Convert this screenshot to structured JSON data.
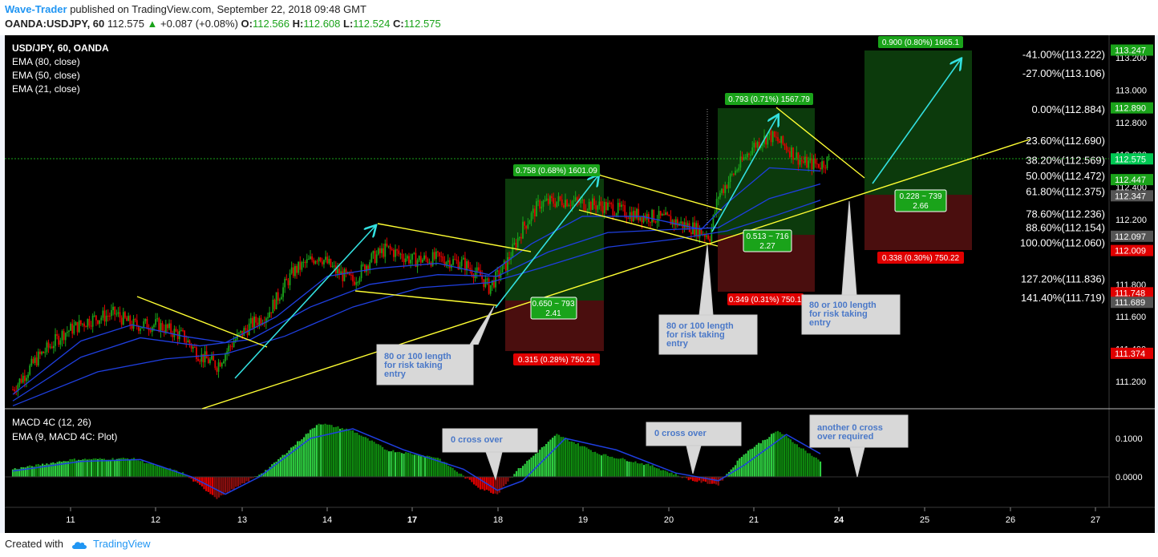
{
  "header": {
    "author": "Wave-Trader",
    "published_text": "published on TradingView.com, September 22, 2018 09:48 GMT",
    "symbol": "OANDA:USDJPY, 60",
    "last": "112.575",
    "change": "+0.087 (+0.08%)",
    "o_label": "O:",
    "o_value": "112.566",
    "h_label": "H:",
    "h_value": "112.608",
    "l_label": "L:",
    "l_value": "112.524",
    "c_label": "C:",
    "c_value": "112.575"
  },
  "legend": {
    "title": "USD/JPY, 60, OANDA",
    "items": [
      "EMA (80, close)",
      "EMA (50, close)",
      "EMA (21, close)"
    ]
  },
  "macd_legend": {
    "title": "MACD 4C (12, 26)",
    "ema": "EMA (9, MACD 4C: Plot)"
  },
  "fib_levels": [
    {
      "label": "-41.00%(113.222)",
      "price": 113.222
    },
    {
      "label": "-27.00%(113.106)",
      "price": 113.106
    },
    {
      "label": "0.00%(112.884)",
      "price": 112.884
    },
    {
      "label": "23.60%(112.690)",
      "price": 112.69
    },
    {
      "label": "38.20%(112.569)",
      "price": 112.569
    },
    {
      "label": "50.00%(112.472)",
      "price": 112.472
    },
    {
      "label": "61.80%(112.375)",
      "price": 112.375
    },
    {
      "label": "78.60%(112.236)",
      "price": 112.236
    },
    {
      "label": "88.60%(112.154)",
      "price": 112.154
    },
    {
      "label": "100.00%(112.060)",
      "price": 112.06
    },
    {
      "label": "127.20%(111.836)",
      "price": 111.836
    },
    {
      "label": "141.40%(111.719)",
      "price": 111.719
    }
  ],
  "price_tags": [
    {
      "text": "113.247",
      "price": 113.247,
      "color": "#1aa31a"
    },
    {
      "text": "112.890",
      "price": 112.89,
      "color": "#1aa31a"
    },
    {
      "text": "112.575",
      "price": 112.575,
      "color": "#00c853"
    },
    {
      "text": "112.447",
      "price": 112.447,
      "color": "#1aa31a"
    },
    {
      "text": "112.347",
      "price": 112.347,
      "color": "#555555"
    },
    {
      "text": "112.097",
      "price": 112.097,
      "color": "#555555"
    },
    {
      "text": "112.009",
      "price": 112.009,
      "color": "#e00000"
    },
    {
      "text": "111.748",
      "price": 111.748,
      "color": "#e00000"
    },
    {
      "text": "111.689",
      "price": 111.689,
      "color": "#555555"
    },
    {
      "text": "111.374",
      "price": 111.374,
      "color": "#e00000"
    }
  ],
  "position_labels": {
    "p1_target": "0.758 (0.68%) 1601.09",
    "p1_ratio": [
      "0.650 ~ 793",
      "2.41"
    ],
    "p1_stop": "0.315 (0.28%) 750.21",
    "p2_target": "0.793 (0.71%) 1567.79",
    "p2_ratio": [
      "0.513 ~ 716",
      "2.27"
    ],
    "p2_stop": "0.349 (0.31%) 750.1",
    "p3_target": "0.900 (0.80%) 1665.1",
    "p3_ratio": [
      "0.228 ~ 739",
      "2.66"
    ],
    "p3_stop": "0.338 (0.30%) 750.22"
  },
  "callouts": {
    "c1": [
      "80 or 100 length",
      "for risk taking",
      "entry"
    ],
    "c2": [
      "80 or 100 length",
      "for risk taking",
      "entry"
    ],
    "c3": [
      "80 or 100 length",
      "for risk taking",
      "entry"
    ],
    "m1": [
      "0 cross over"
    ],
    "m2": [
      "0 cross over"
    ],
    "m3": [
      "another 0 cross",
      "over required"
    ]
  },
  "x_ticks": [
    "11",
    "12",
    "13",
    "14",
    "17",
    "18",
    "19",
    "20",
    "21",
    "24",
    "25",
    "26",
    "27"
  ],
  "bold_ticks": [
    "17",
    "24"
  ],
  "footer": {
    "created": "Created with",
    "brand": "TradingView"
  },
  "colors": {
    "background": "#000000",
    "up": "#1aa31a",
    "down": "#e00000",
    "ema": "#1f3fe0",
    "trend": "#ffff33",
    "arrow": "#33e0e0",
    "profit_zone": "#0c3a0c",
    "loss_zone": "#4a0e0e"
  },
  "chart_data": {
    "type": "candlestick",
    "symbol": "USD/JPY",
    "timeframe": "60",
    "ylim": [
      111.05,
      113.33
    ],
    "y_ticks": [
      111.2,
      111.4,
      111.6,
      111.8,
      112.0,
      112.2,
      112.4,
      112.6,
      112.8,
      113.0,
      113.2
    ],
    "close_path": [
      {
        "x": 0,
        "y": 111.15
      },
      {
        "x": 3,
        "y": 111.35
      },
      {
        "x": 6,
        "y": 111.5
      },
      {
        "x": 9,
        "y": 111.58
      },
      {
        "x": 12,
        "y": 111.62
      },
      {
        "x": 14,
        "y": 111.55
      },
      {
        "x": 17,
        "y": 111.55
      },
      {
        "x": 20,
        "y": 111.48
      },
      {
        "x": 22,
        "y": 111.36
      },
      {
        "x": 24,
        "y": 111.3
      },
      {
        "x": 26,
        "y": 111.45
      },
      {
        "x": 28,
        "y": 111.55
      },
      {
        "x": 30,
        "y": 111.62
      },
      {
        "x": 33,
        "y": 111.88
      },
      {
        "x": 36,
        "y": 111.98
      },
      {
        "x": 38,
        "y": 111.88
      },
      {
        "x": 40,
        "y": 111.82
      },
      {
        "x": 42,
        "y": 111.95
      },
      {
        "x": 44,
        "y": 112.02
      },
      {
        "x": 47,
        "y": 111.95
      },
      {
        "x": 50,
        "y": 111.96
      },
      {
        "x": 53,
        "y": 111.93
      },
      {
        "x": 55,
        "y": 111.85
      },
      {
        "x": 56,
        "y": 111.78
      },
      {
        "x": 58,
        "y": 111.92
      },
      {
        "x": 60,
        "y": 112.15
      },
      {
        "x": 62,
        "y": 112.3
      },
      {
        "x": 65,
        "y": 112.32
      },
      {
        "x": 67,
        "y": 112.3
      },
      {
        "x": 70,
        "y": 112.28
      },
      {
        "x": 73,
        "y": 112.23
      },
      {
        "x": 75,
        "y": 112.22
      },
      {
        "x": 77,
        "y": 112.2
      },
      {
        "x": 80,
        "y": 112.15
      },
      {
        "x": 82,
        "y": 112.1
      },
      {
        "x": 83,
        "y": 112.35
      },
      {
        "x": 85,
        "y": 112.5
      },
      {
        "x": 87,
        "y": 112.65
      },
      {
        "x": 89,
        "y": 112.72
      },
      {
        "x": 91,
        "y": 112.65
      },
      {
        "x": 93,
        "y": 112.55
      },
      {
        "x": 95,
        "y": 112.54
      },
      {
        "x": 96,
        "y": 112.57
      }
    ],
    "ema_21": [
      {
        "x": 0,
        "y": 111.12
      },
      {
        "x": 8,
        "y": 111.45
      },
      {
        "x": 14,
        "y": 111.55
      },
      {
        "x": 20,
        "y": 111.48
      },
      {
        "x": 25,
        "y": 111.44
      },
      {
        "x": 31,
        "y": 111.6
      },
      {
        "x": 37,
        "y": 111.85
      },
      {
        "x": 43,
        "y": 111.9
      },
      {
        "x": 50,
        "y": 111.93
      },
      {
        "x": 56,
        "y": 111.86
      },
      {
        "x": 61,
        "y": 112.05
      },
      {
        "x": 67,
        "y": 112.22
      },
      {
        "x": 74,
        "y": 112.22
      },
      {
        "x": 81,
        "y": 112.14
      },
      {
        "x": 84,
        "y": 112.3
      },
      {
        "x": 89,
        "y": 112.52
      },
      {
        "x": 95,
        "y": 112.5
      }
    ],
    "ema_50": [
      {
        "x": 0,
        "y": 111.08
      },
      {
        "x": 8,
        "y": 111.35
      },
      {
        "x": 15,
        "y": 111.47
      },
      {
        "x": 22,
        "y": 111.42
      },
      {
        "x": 28,
        "y": 111.46
      },
      {
        "x": 35,
        "y": 111.66
      },
      {
        "x": 42,
        "y": 111.8
      },
      {
        "x": 50,
        "y": 111.86
      },
      {
        "x": 57,
        "y": 111.85
      },
      {
        "x": 63,
        "y": 112.0
      },
      {
        "x": 70,
        "y": 112.12
      },
      {
        "x": 78,
        "y": 112.14
      },
      {
        "x": 83,
        "y": 112.15
      },
      {
        "x": 89,
        "y": 112.33
      },
      {
        "x": 95,
        "y": 112.42
      }
    ],
    "ema_80": [
      {
        "x": 0,
        "y": 111.05
      },
      {
        "x": 10,
        "y": 111.26
      },
      {
        "x": 18,
        "y": 111.34
      },
      {
        "x": 25,
        "y": 111.37
      },
      {
        "x": 32,
        "y": 111.48
      },
      {
        "x": 40,
        "y": 111.66
      },
      {
        "x": 48,
        "y": 111.78
      },
      {
        "x": 56,
        "y": 111.81
      },
      {
        "x": 62,
        "y": 111.9
      },
      {
        "x": 70,
        "y": 112.03
      },
      {
        "x": 78,
        "y": 112.08
      },
      {
        "x": 84,
        "y": 112.13
      },
      {
        "x": 90,
        "y": 112.23
      },
      {
        "x": 95,
        "y": 112.32
      }
    ],
    "macd": {
      "zero": 0.0,
      "ylim": [
        -0.05,
        0.18
      ],
      "y_ticks": [
        0.0,
        0.1
      ],
      "histogram_path": [
        {
          "x": 0,
          "y": 0.02
        },
        {
          "x": 7,
          "y": 0.045
        },
        {
          "x": 14,
          "y": 0.048
        },
        {
          "x": 20,
          "y": 0.01
        },
        {
          "x": 24,
          "y": -0.055
        },
        {
          "x": 27,
          "y": -0.02
        },
        {
          "x": 30,
          "y": 0.02
        },
        {
          "x": 36,
          "y": 0.14
        },
        {
          "x": 40,
          "y": 0.12
        },
        {
          "x": 44,
          "y": 0.07
        },
        {
          "x": 50,
          "y": 0.05
        },
        {
          "x": 55,
          "y": -0.03
        },
        {
          "x": 57,
          "y": -0.045
        },
        {
          "x": 59,
          "y": 0.01
        },
        {
          "x": 64,
          "y": 0.11
        },
        {
          "x": 69,
          "y": 0.06
        },
        {
          "x": 75,
          "y": 0.03
        },
        {
          "x": 80,
          "y": -0.01
        },
        {
          "x": 83,
          "y": -0.02
        },
        {
          "x": 86,
          "y": 0.06
        },
        {
          "x": 90,
          "y": 0.12
        },
        {
          "x": 95,
          "y": 0.04
        }
      ],
      "signal_path": [
        {
          "x": 0,
          "y": 0.015
        },
        {
          "x": 8,
          "y": 0.04
        },
        {
          "x": 15,
          "y": 0.045
        },
        {
          "x": 21,
          "y": 0.0
        },
        {
          "x": 25,
          "y": -0.045
        },
        {
          "x": 29,
          "y": 0.0
        },
        {
          "x": 35,
          "y": 0.1
        },
        {
          "x": 40,
          "y": 0.125
        },
        {
          "x": 46,
          "y": 0.07
        },
        {
          "x": 53,
          "y": 0.02
        },
        {
          "x": 57,
          "y": -0.035
        },
        {
          "x": 60,
          "y": -0.01
        },
        {
          "x": 65,
          "y": 0.1
        },
        {
          "x": 71,
          "y": 0.07
        },
        {
          "x": 78,
          "y": 0.01
        },
        {
          "x": 83,
          "y": -0.01
        },
        {
          "x": 86,
          "y": 0.03
        },
        {
          "x": 91,
          "y": 0.11
        },
        {
          "x": 95,
          "y": 0.06
        }
      ]
    }
  }
}
